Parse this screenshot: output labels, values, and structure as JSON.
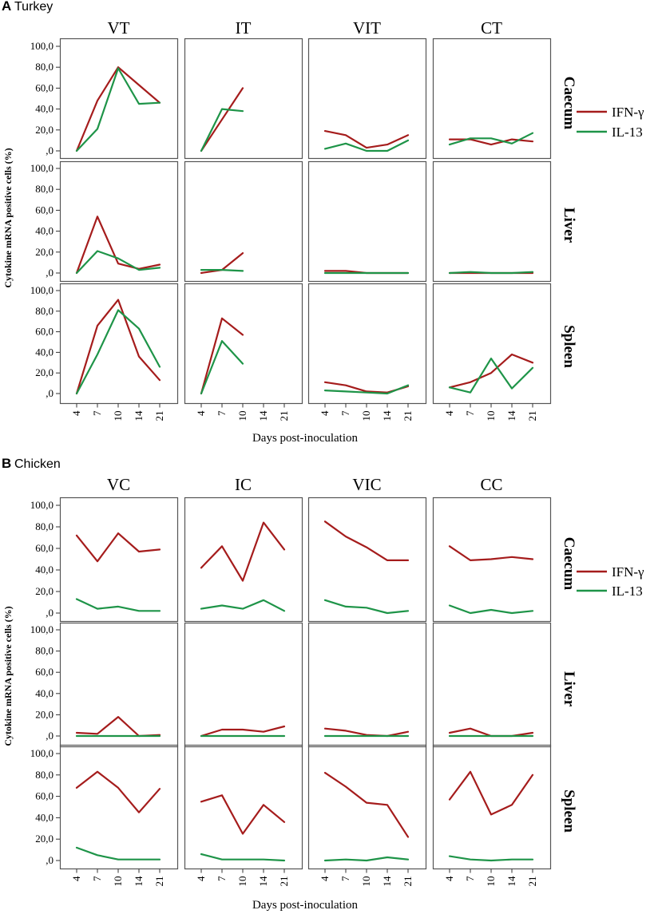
{
  "chart_data": [
    {
      "type": "line",
      "panel_letter": "A",
      "panel_name": "Turkey",
      "columns": [
        "VT",
        "IT",
        "VIT",
        "CT"
      ],
      "rows": [
        "Caecum",
        "Liver",
        "Spleen"
      ],
      "x": [
        "4",
        "7",
        "10",
        "14",
        "21"
      ],
      "ytick_labels": [
        "100,0",
        "80,0",
        "60,0",
        "40,0",
        "20,0",
        ",0"
      ],
      "ylim": [
        0,
        100
      ],
      "xlabel": "Days post-inoculation",
      "ylabel": "Cytokine mRNA positive cells (%)",
      "legend": [
        {
          "name": "IFN-γ",
          "color": "#a51c1c"
        },
        {
          "name": "IL-13",
          "color": "#1e9448"
        }
      ],
      "series": [
        {
          "row": "Caecum",
          "column": "VT",
          "name": "IFN-γ",
          "values": [
            0,
            48,
            80,
            63,
            46
          ]
        },
        {
          "row": "Caecum",
          "column": "VT",
          "name": "IL-13",
          "values": [
            0,
            21,
            79,
            45,
            46
          ]
        },
        {
          "row": "Caecum",
          "column": "IT",
          "name": "IFN-γ",
          "values": [
            0,
            30,
            60,
            null,
            null
          ]
        },
        {
          "row": "Caecum",
          "column": "IT",
          "name": "IL-13",
          "values": [
            0,
            40,
            38,
            null,
            null
          ]
        },
        {
          "row": "Caecum",
          "column": "VIT",
          "name": "IFN-γ",
          "values": [
            19,
            15,
            3,
            6,
            15
          ]
        },
        {
          "row": "Caecum",
          "column": "VIT",
          "name": "IL-13",
          "values": [
            2,
            7,
            0,
            0,
            10
          ]
        },
        {
          "row": "Caecum",
          "column": "CT",
          "name": "IFN-γ",
          "values": [
            11,
            11,
            6,
            11,
            9
          ]
        },
        {
          "row": "Caecum",
          "column": "CT",
          "name": "IL-13",
          "values": [
            6,
            12,
            12,
            7,
            17
          ]
        },
        {
          "row": "Liver",
          "column": "VT",
          "name": "IFN-γ",
          "values": [
            0,
            54,
            9,
            4,
            8
          ]
        },
        {
          "row": "Liver",
          "column": "VT",
          "name": "IL-13",
          "values": [
            0,
            21,
            14,
            3,
            5
          ]
        },
        {
          "row": "Liver",
          "column": "IT",
          "name": "IFN-γ",
          "values": [
            0,
            3,
            19,
            null,
            null
          ]
        },
        {
          "row": "Liver",
          "column": "IT",
          "name": "IL-13",
          "values": [
            3,
            3,
            2,
            null,
            null
          ]
        },
        {
          "row": "Liver",
          "column": "VIT",
          "name": "IFN-γ",
          "values": [
            2,
            2,
            0,
            0,
            0
          ]
        },
        {
          "row": "Liver",
          "column": "VIT",
          "name": "IL-13",
          "values": [
            0,
            0,
            0,
            0,
            0
          ]
        },
        {
          "row": "Liver",
          "column": "CT",
          "name": "IFN-γ",
          "values": [
            0,
            0,
            0,
            0,
            0
          ]
        },
        {
          "row": "Liver",
          "column": "CT",
          "name": "IL-13",
          "values": [
            0,
            1,
            0,
            0,
            1
          ]
        },
        {
          "row": "Spleen",
          "column": "VT",
          "name": "IFN-γ",
          "values": [
            0,
            66,
            91,
            36,
            13
          ]
        },
        {
          "row": "Spleen",
          "column": "VT",
          "name": "IL-13",
          "values": [
            0,
            38,
            81,
            63,
            26
          ]
        },
        {
          "row": "Spleen",
          "column": "IT",
          "name": "IFN-γ",
          "values": [
            0,
            73,
            57,
            null,
            null
          ]
        },
        {
          "row": "Spleen",
          "column": "IT",
          "name": "IL-13",
          "values": [
            0,
            51,
            29,
            null,
            null
          ]
        },
        {
          "row": "Spleen",
          "column": "VIT",
          "name": "IFN-γ",
          "values": [
            11,
            8,
            2,
            1,
            7
          ]
        },
        {
          "row": "Spleen",
          "column": "VIT",
          "name": "IL-13",
          "values": [
            3,
            2,
            1,
            0,
            8
          ]
        },
        {
          "row": "Spleen",
          "column": "CT",
          "name": "IFN-γ",
          "values": [
            6,
            11,
            20,
            38,
            30
          ]
        },
        {
          "row": "Spleen",
          "column": "CT",
          "name": "IL-13",
          "values": [
            6,
            1,
            34,
            5,
            25
          ]
        }
      ]
    },
    {
      "type": "line",
      "panel_letter": "B",
      "panel_name": "Chicken",
      "columns": [
        "VC",
        "IC",
        "VIC",
        "CC"
      ],
      "rows": [
        "Caecum",
        "Liver",
        "Spleen"
      ],
      "x": [
        "4",
        "7",
        "10",
        "14",
        "21"
      ],
      "ytick_labels": [
        "100,0",
        "80,0",
        "60,0",
        "40,0",
        "20,0",
        ",0"
      ],
      "ylim": [
        0,
        100
      ],
      "xlabel": "Days post-inoculation",
      "ylabel": "Cytokine mRNA positive cells (%)",
      "legend": [
        {
          "name": "IFN-γ",
          "color": "#a51c1c"
        },
        {
          "name": "IL-13",
          "color": "#1e9448"
        }
      ],
      "series": [
        {
          "row": "Caecum",
          "column": "VC",
          "name": "IFN-γ",
          "values": [
            72,
            48,
            74,
            57,
            59
          ]
        },
        {
          "row": "Caecum",
          "column": "VC",
          "name": "IL-13",
          "values": [
            13,
            4,
            6,
            2,
            2
          ]
        },
        {
          "row": "Caecum",
          "column": "IC",
          "name": "IFN-γ",
          "values": [
            42,
            62,
            30,
            84,
            59
          ]
        },
        {
          "row": "Caecum",
          "column": "IC",
          "name": "IL-13",
          "values": [
            4,
            7,
            4,
            12,
            2
          ]
        },
        {
          "row": "Caecum",
          "column": "VIC",
          "name": "IFN-γ",
          "values": [
            85,
            71,
            61,
            49,
            49
          ]
        },
        {
          "row": "Caecum",
          "column": "VIC",
          "name": "IL-13",
          "values": [
            12,
            6,
            5,
            0,
            2
          ]
        },
        {
          "row": "Caecum",
          "column": "CC",
          "name": "IFN-γ",
          "values": [
            62,
            49,
            50,
            52,
            50
          ]
        },
        {
          "row": "Caecum",
          "column": "CC",
          "name": "IL-13",
          "values": [
            7,
            0,
            3,
            0,
            2
          ]
        },
        {
          "row": "Liver",
          "column": "VC",
          "name": "IFN-γ",
          "values": [
            3,
            2,
            18,
            0,
            1
          ]
        },
        {
          "row": "Liver",
          "column": "VC",
          "name": "IL-13",
          "values": [
            0,
            0,
            0,
            0,
            0
          ]
        },
        {
          "row": "Liver",
          "column": "IC",
          "name": "IFN-γ",
          "values": [
            0,
            6,
            6,
            4,
            9
          ]
        },
        {
          "row": "Liver",
          "column": "IC",
          "name": "IL-13",
          "values": [
            0,
            0,
            0,
            0,
            0
          ]
        },
        {
          "row": "Liver",
          "column": "VIC",
          "name": "IFN-γ",
          "values": [
            7,
            5,
            1,
            0,
            4
          ]
        },
        {
          "row": "Liver",
          "column": "VIC",
          "name": "IL-13",
          "values": [
            0,
            0,
            0,
            0,
            0
          ]
        },
        {
          "row": "Liver",
          "column": "CC",
          "name": "IFN-γ",
          "values": [
            3,
            7,
            0,
            0,
            3
          ]
        },
        {
          "row": "Liver",
          "column": "CC",
          "name": "IL-13",
          "values": [
            0,
            0,
            0,
            0,
            0
          ]
        },
        {
          "row": "Spleen",
          "column": "VC",
          "name": "IFN-γ",
          "values": [
            68,
            83,
            68,
            45,
            67
          ]
        },
        {
          "row": "Spleen",
          "column": "VC",
          "name": "IL-13",
          "values": [
            12,
            5,
            1,
            1,
            1
          ]
        },
        {
          "row": "Spleen",
          "column": "IC",
          "name": "IFN-γ",
          "values": [
            55,
            61,
            25,
            52,
            36
          ]
        },
        {
          "row": "Spleen",
          "column": "IC",
          "name": "IL-13",
          "values": [
            6,
            1,
            1,
            1,
            0
          ]
        },
        {
          "row": "Spleen",
          "column": "VIC",
          "name": "IFN-γ",
          "values": [
            82,
            69,
            54,
            52,
            22
          ]
        },
        {
          "row": "Spleen",
          "column": "VIC",
          "name": "IL-13",
          "values": [
            0,
            1,
            0,
            3,
            1
          ]
        },
        {
          "row": "Spleen",
          "column": "CC",
          "name": "IFN-γ",
          "values": [
            57,
            83,
            43,
            52,
            80
          ]
        },
        {
          "row": "Spleen",
          "column": "CC",
          "name": "IL-13",
          "values": [
            4,
            1,
            0,
            1,
            1
          ]
        }
      ]
    }
  ]
}
